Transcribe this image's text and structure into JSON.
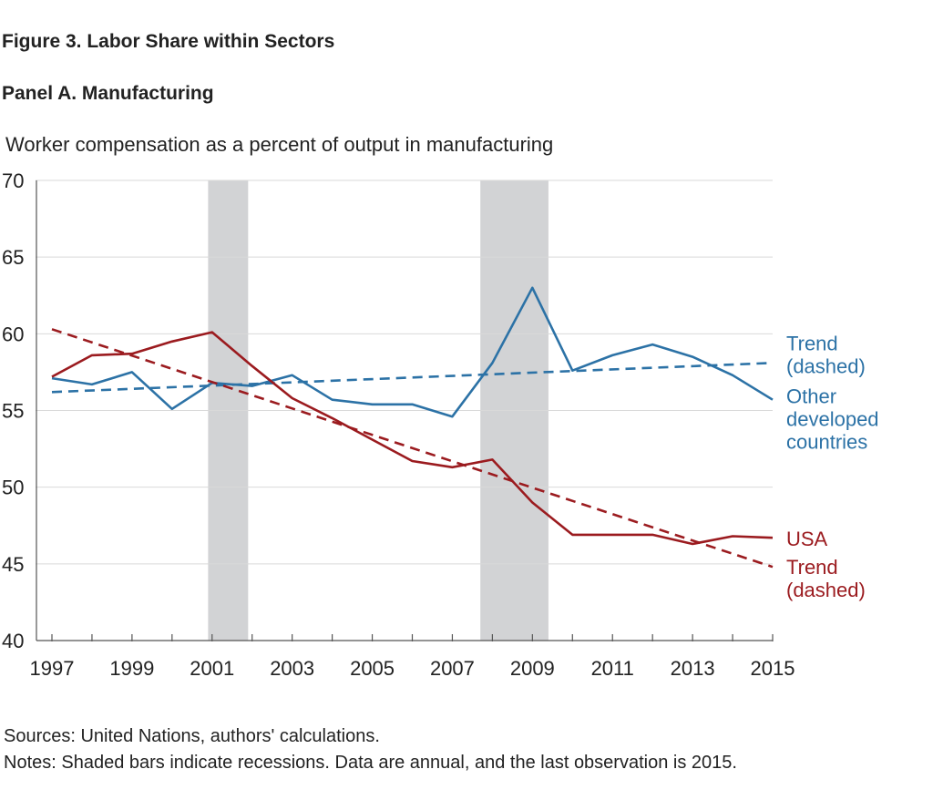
{
  "figure_title": "Figure 3. Labor Share within Sectors",
  "panel_title": "Panel A. Manufacturing",
  "sources": "Sources: United Nations, authors' calculations.",
  "notes": "Notes: Shaded bars indicate recessions. Data are annual, and the last observation is 2015.",
  "colors": {
    "usa": "#9b1b1f",
    "other": "#2c72a6",
    "recession": "#d2d3d5",
    "grid": "#d9d9d9",
    "axis": "#555555"
  },
  "chart_data": {
    "type": "line",
    "title": "",
    "ylabel": "Worker compensation as a percent of output in manufacturing",
    "xlabel": "",
    "xlim": [
      1997,
      2015
    ],
    "ylim": [
      40,
      70
    ],
    "x_ticks": [
      1997,
      1999,
      2001,
      2003,
      2005,
      2007,
      2009,
      2011,
      2013,
      2015
    ],
    "y_ticks": [
      40,
      45,
      50,
      55,
      60,
      65,
      70
    ],
    "grid": true,
    "recessions": [
      [
        2000.9,
        2001.9
      ],
      [
        2007.7,
        2009.4
      ]
    ],
    "x": [
      1997,
      1998,
      1999,
      2000,
      2001,
      2002,
      2003,
      2004,
      2005,
      2006,
      2007,
      2008,
      2009,
      2010,
      2011,
      2012,
      2013,
      2014,
      2015
    ],
    "series": [
      {
        "name": "Other developed countries",
        "key": "other",
        "style": "solid",
        "values": [
          57.1,
          56.7,
          57.5,
          55.1,
          56.8,
          56.6,
          57.3,
          55.7,
          55.4,
          55.4,
          54.6,
          58.1,
          63.0,
          57.6,
          58.6,
          59.3,
          58.5,
          57.3,
          55.7
        ]
      },
      {
        "name": "Trend (dashed)",
        "key": "other",
        "style": "dashed",
        "x": [
          1997,
          2015
        ],
        "values": [
          56.2,
          58.1
        ]
      },
      {
        "name": "USA",
        "key": "usa",
        "style": "solid",
        "values": [
          57.2,
          58.6,
          58.7,
          59.5,
          60.1,
          57.9,
          55.8,
          54.5,
          53.1,
          51.7,
          51.3,
          51.8,
          49.0,
          46.9,
          46.9,
          46.9,
          46.3,
          46.8,
          46.7
        ]
      },
      {
        "name": "Trend (dashed)",
        "key": "usa",
        "style": "dashed",
        "x": [
          1997,
          2015
        ],
        "values": [
          60.3,
          44.8
        ]
      }
    ],
    "labels": [
      {
        "lines": [
          "Trend",
          "(dashed)"
        ],
        "key": "other",
        "anchor_y": 58.6
      },
      {
        "lines": [
          "Other",
          "developed",
          "countries"
        ],
        "key": "other",
        "anchor_y": 54.4
      },
      {
        "lines": [
          "USA"
        ],
        "key": "usa",
        "anchor_y": 46.6
      },
      {
        "lines": [
          "Trend",
          "(dashed)"
        ],
        "key": "usa",
        "anchor_y": 44.0
      }
    ]
  }
}
